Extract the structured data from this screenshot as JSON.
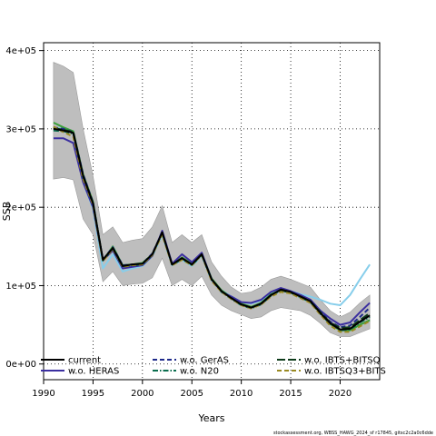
{
  "chart_data": {
    "type": "line",
    "xlabel": "Years",
    "ylabel": "SSB",
    "xlim": [
      1990,
      2024
    ],
    "ylim": [
      -20000,
      410000
    ],
    "x_ticks": [
      1990,
      1995,
      2000,
      2005,
      2010,
      2015,
      2020
    ],
    "y_ticks": [
      0,
      100000,
      200000,
      300000,
      400000
    ],
    "y_tick_labels": [
      "0e+00",
      "1e+05",
      "2e+05",
      "3e+05",
      "4e+05"
    ],
    "grid": true,
    "legend_position": "bottom",
    "footer": "stockassessment.org, WBSS_HAWG_2024_sf r17845, gitsc2c2a0c6dde",
    "colors": {
      "band": "#bebebe",
      "current": "#000000",
      "heras": "#3b2fa0",
      "geras": "#1e2a8a",
      "n20": "#0b6e4f",
      "ibts_bitsq": "#0d3b1a",
      "ibtsq3_bits": "#9a8a22",
      "light_blue": "#87ceeb",
      "green": "#3aa03a"
    },
    "confidence_band": {
      "x": [
        1991,
        1992,
        1993,
        1994,
        1995,
        1996,
        1997,
        1998,
        1999,
        2000,
        2001,
        2002,
        2003,
        2004,
        2005,
        2006,
        2007,
        2008,
        2009,
        2010,
        2011,
        2012,
        2013,
        2014,
        2015,
        2016,
        2017,
        2018,
        2019,
        2020,
        2021,
        2022,
        2023
      ],
      "upper": [
        385000,
        380000,
        372000,
        300000,
        240000,
        165000,
        175000,
        155000,
        158000,
        160000,
        175000,
        202000,
        155000,
        165000,
        155000,
        165000,
        130000,
        112000,
        98000,
        90000,
        92000,
        98000,
        108000,
        112000,
        108000,
        103000,
        98000,
        82000,
        68000,
        60000,
        66000,
        78000,
        88000
      ],
      "lower": [
        236000,
        238000,
        235000,
        185000,
        165000,
        105000,
        118000,
        100000,
        102000,
        103000,
        110000,
        135000,
        100000,
        108000,
        100000,
        112000,
        88000,
        75000,
        68000,
        63000,
        58000,
        60000,
        68000,
        72000,
        70000,
        68000,
        62000,
        52000,
        40000,
        35000,
        35000,
        40000,
        45000
      ]
    },
    "series": [
      {
        "name": "current",
        "color": "#000000",
        "dash": "solid",
        "values": [
          300000,
          298000,
          295000,
          240000,
          205000,
          133000,
          148000,
          125000,
          127000,
          128000,
          140000,
          168000,
          127000,
          135000,
          127000,
          140000,
          108000,
          93000,
          84000,
          76000,
          72000,
          77000,
          88000,
          95000,
          92000,
          86000,
          80000,
          65000,
          52000,
          44000,
          45000,
          54000,
          62000
        ]
      },
      {
        "name": "w.o. HERAS",
        "color": "#3b2fa0",
        "dash": "solid",
        "values": [
          288000,
          288000,
          282000,
          232000,
          200000,
          132000,
          145000,
          122000,
          124000,
          126000,
          138000,
          170000,
          128000,
          140000,
          130000,
          142000,
          108000,
          92000,
          86000,
          79000,
          78000,
          82000,
          92000,
          97000,
          93000,
          88000,
          82000,
          68000,
          58000,
          50000,
          53000,
          66000,
          78000
        ]
      },
      {
        "name": "w.o. GerAS",
        "color": "#1e2a8a",
        "dash": "dashed",
        "values": [
          302000,
          300000,
          296000,
          242000,
          206000,
          133000,
          149000,
          126000,
          127000,
          128000,
          141000,
          168000,
          127000,
          135000,
          127000,
          140000,
          108000,
          93000,
          84000,
          76000,
          72000,
          77000,
          88000,
          95000,
          92000,
          86000,
          81000,
          67000,
          54000,
          47000,
          49000,
          60000,
          72000
        ]
      },
      {
        "name": "w.o. N20",
        "color": "#0b6e4f",
        "dash": "dotdash",
        "values": [
          298000,
          297000,
          294000,
          238000,
          204000,
          132000,
          147000,
          124000,
          126000,
          127000,
          139000,
          167000,
          126000,
          134000,
          126000,
          139000,
          107000,
          92000,
          83000,
          75000,
          71000,
          76000,
          87000,
          94000,
          91000,
          85000,
          79000,
          64000,
          51000,
          43000,
          44000,
          53000,
          60000
        ]
      },
      {
        "name": "w.o. IBTS+BITSQ",
        "color": "#0d3b1a",
        "dash": "longdash",
        "values": [
          301000,
          299000,
          296000,
          240000,
          205000,
          133000,
          148000,
          125000,
          127000,
          128000,
          140000,
          168000,
          127000,
          135000,
          127000,
          140000,
          108000,
          93000,
          84000,
          76000,
          72000,
          77000,
          88000,
          94000,
          91000,
          86000,
          80000,
          66000,
          53000,
          46000,
          47000,
          56000,
          65000
        ]
      },
      {
        "name": "w.o. IBTSQ3+BITS",
        "color": "#9a8a22",
        "dash": "dashed",
        "values": [
          303000,
          296000,
          290000,
          236000,
          203000,
          131000,
          147000,
          124000,
          126000,
          127000,
          139000,
          165000,
          126000,
          133000,
          126000,
          139000,
          106000,
          92000,
          83000,
          75000,
          71000,
          76000,
          86000,
          92000,
          90000,
          84000,
          78000,
          63000,
          49000,
          41000,
          41000,
          48000,
          55000
        ]
      },
      {
        "color": "#87ceeb",
        "dash": "solid",
        "values": [
          302000,
          300000,
          297000,
          232000,
          198000,
          122000,
          140000,
          118000,
          122000,
          125000,
          138000,
          165000,
          126000,
          133000,
          125000,
          138000,
          107000,
          94000,
          86000,
          79000,
          77000,
          81000,
          90000,
          95000,
          93000,
          89000,
          86000,
          82000,
          77000,
          75000,
          88000,
          108000,
          127000
        ]
      },
      {
        "color": "#3aa03a",
        "dash": "solid",
        "values": [
          308000,
          302000,
          297000,
          242000,
          207000,
          132000,
          150000,
          126000,
          127000,
          129000,
          140000,
          168000,
          127000,
          136000,
          128000,
          141000,
          109000,
          94000,
          85000,
          77000,
          73000,
          78000,
          89000,
          94000,
          91000,
          86000,
          80000,
          65000,
          51000,
          43000,
          43000,
          50000,
          56000
        ]
      }
    ]
  }
}
